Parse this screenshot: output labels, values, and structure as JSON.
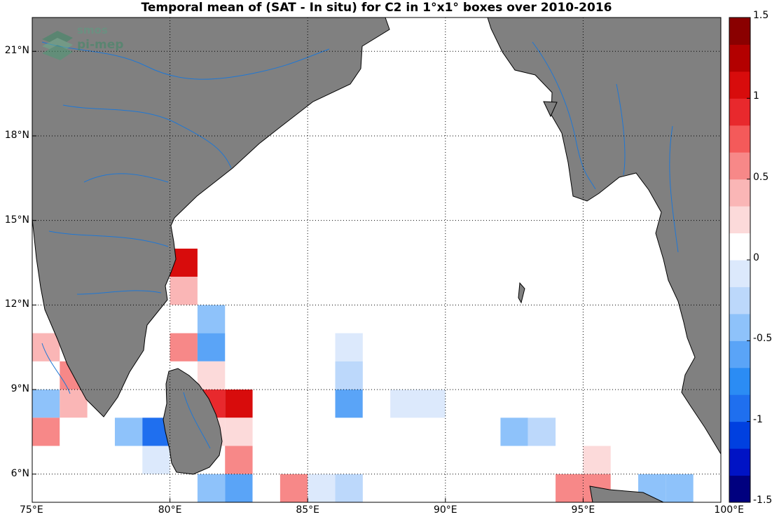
{
  "title": "Temporal mean of (SAT - In situ) for C2 in 1°x1° boxes over 2010-2016",
  "watermark": {
    "line1": "smos",
    "line2": "pi-mep"
  },
  "map": {
    "lon_range": [
      75,
      100
    ],
    "lat_range": [
      5,
      22.2
    ],
    "x_ticks": [
      {
        "value": 75,
        "label": "75°E"
      },
      {
        "value": 80,
        "label": "80°E"
      },
      {
        "value": 85,
        "label": "85°E"
      },
      {
        "value": 90,
        "label": "90°E"
      },
      {
        "value": 95,
        "label": "95°E"
      },
      {
        "value": 100,
        "label": "100°E"
      }
    ],
    "y_ticks": [
      {
        "value": 6,
        "label": "6°N"
      },
      {
        "value": 9,
        "label": "9°N"
      },
      {
        "value": 12,
        "label": "12°N"
      },
      {
        "value": 15,
        "label": "15°N"
      },
      {
        "value": 18,
        "label": "18°N"
      },
      {
        "value": 21,
        "label": "21°N"
      }
    ],
    "grid": true,
    "land_color": "#808080",
    "river_color": "#1f77d4"
  },
  "colorbar": {
    "min": -1.5,
    "max": 1.5,
    "ticks": [
      {
        "value": 1.5,
        "label": "1.5"
      },
      {
        "value": 1,
        "label": "1"
      },
      {
        "value": 0.5,
        "label": "0.5"
      },
      {
        "value": 0,
        "label": "0"
      },
      {
        "value": -0.5,
        "label": "-0.5"
      },
      {
        "value": -1,
        "label": "-1"
      },
      {
        "value": -1.5,
        "label": "-1.5"
      }
    ]
  },
  "chart_data": {
    "type": "heatmap",
    "title": "Temporal mean of (SAT - In situ) for C2 in 1°x1° boxes over 2010-2016",
    "xlabel": "",
    "ylabel": "",
    "xlim": [
      75,
      100
    ],
    "ylim": [
      5,
      22.2
    ],
    "cell_size_deg": 1,
    "value_range": [
      -1.5,
      1.5
    ],
    "cells": [
      {
        "lon": 80,
        "lat": 13,
        "value": 1.0
      },
      {
        "lon": 80,
        "lat": 12,
        "value": 0.35
      },
      {
        "lon": 81,
        "lat": 11,
        "value": -0.4
      },
      {
        "lon": 75,
        "lat": 10,
        "value": 0.45
      },
      {
        "lon": 80,
        "lat": 10,
        "value": 0.6
      },
      {
        "lon": 81,
        "lat": 10,
        "value": -0.55
      },
      {
        "lon": 86,
        "lat": 10,
        "value": -0.15
      },
      {
        "lon": 76,
        "lat": 9,
        "value": 0.6
      },
      {
        "lon": 81,
        "lat": 9,
        "value": 0.2
      },
      {
        "lon": 86,
        "lat": 9,
        "value": -0.25
      },
      {
        "lon": 75,
        "lat": 8,
        "value": -0.35
      },
      {
        "lon": 76,
        "lat": 8,
        "value": 0.35
      },
      {
        "lon": 81,
        "lat": 8,
        "value": 0.9
      },
      {
        "lon": 82,
        "lat": 8,
        "value": 1.1
      },
      {
        "lon": 86,
        "lat": 8,
        "value": -0.65
      },
      {
        "lon": 87,
        "lat": 8,
        "value": 0.15
      },
      {
        "lon": 88,
        "lat": 8,
        "value": -0.1
      },
      {
        "lon": 89,
        "lat": 8,
        "value": -0.1
      },
      {
        "lon": 91,
        "lat": 8,
        "value": 0.15
      },
      {
        "lon": 75,
        "lat": 7,
        "value": 0.5
      },
      {
        "lon": 76,
        "lat": 7,
        "value": 0.15
      },
      {
        "lon": 78,
        "lat": 7,
        "value": -0.35
      },
      {
        "lon": 79,
        "lat": 7,
        "value": -0.85
      },
      {
        "lon": 81,
        "lat": 7,
        "value": 0.3
      },
      {
        "lon": 82,
        "lat": 7,
        "value": 0.3
      },
      {
        "lon": 92,
        "lat": 7,
        "value": -0.35
      },
      {
        "lon": 93,
        "lat": 7,
        "value": -0.2
      },
      {
        "lon": 79,
        "lat": 6,
        "value": -0.1
      },
      {
        "lon": 82,
        "lat": 6,
        "value": 0.55
      },
      {
        "lon": 95,
        "lat": 6,
        "value": 0.3
      },
      {
        "lon": 80,
        "lat": 5,
        "value": 0.15
      },
      {
        "lon": 81,
        "lat": 5,
        "value": -0.45
      },
      {
        "lon": 82,
        "lat": 5,
        "value": -0.55
      },
      {
        "lon": 83,
        "lat": 5,
        "value": 0.15
      },
      {
        "lon": 84,
        "lat": 5,
        "value": 0.5
      },
      {
        "lon": 85,
        "lat": 5,
        "value": -0.15
      },
      {
        "lon": 86,
        "lat": 5,
        "value": -0.25
      },
      {
        "lon": 94,
        "lat": 5,
        "value": 0.5
      },
      {
        "lon": 95,
        "lat": 5,
        "value": 0.55
      },
      {
        "lon": 97,
        "lat": 5,
        "value": -0.45
      },
      {
        "lon": 98,
        "lat": 5,
        "value": -0.5
      }
    ]
  }
}
